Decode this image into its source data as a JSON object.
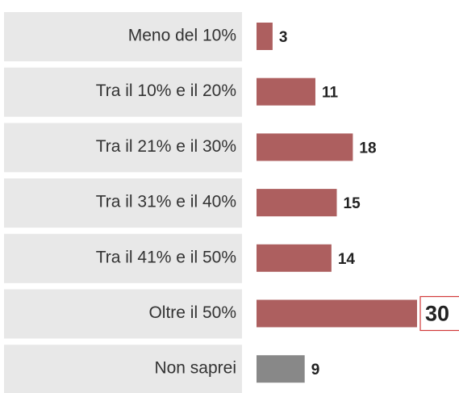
{
  "chart_data": {
    "type": "bar",
    "orientation": "horizontal",
    "categories": [
      "Meno del 10%",
      "Tra il 10% e il 20%",
      "Tra il 21% e il 30%",
      "Tra il 31% e il 40%",
      "Tra il 41% e il 50%",
      "Oltre il 50%",
      "Non saprei"
    ],
    "values": [
      3,
      11,
      18,
      15,
      14,
      30,
      9
    ],
    "colors": [
      "#ad5f5f",
      "#ad5f5f",
      "#ad5f5f",
      "#ad5f5f",
      "#ad5f5f",
      "#ad5f5f",
      "#888888"
    ],
    "highlight": 5
  }
}
